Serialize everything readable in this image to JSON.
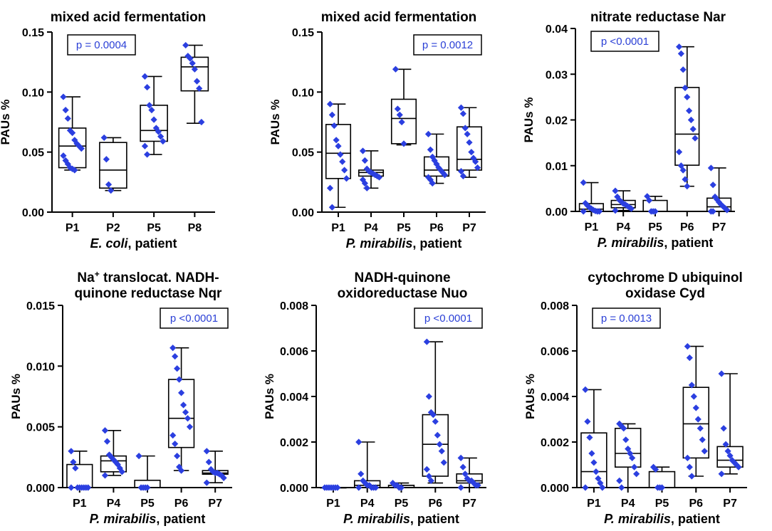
{
  "chart_data": [
    {
      "type": "box",
      "title_lines": [
        "mixed acid fermentation"
      ],
      "ylabel": "PAUs %",
      "xlabel_species": "E. coli",
      "xlabel_suffix": ", patient",
      "ylim": [
        0,
        0.15
      ],
      "yticks": [
        "0.00",
        "0.05",
        "0.10",
        "0.15"
      ],
      "pvalue": "p = 0.0004",
      "pvalue_pos": "top-left",
      "colors": {
        "points": "#2b3fe0",
        "pvalue": "#2a3fd6"
      },
      "categories": [
        "P1",
        "P2",
        "P5",
        "P8"
      ],
      "series": [
        {
          "name": "P1",
          "min": 0.035,
          "q1": 0.037,
          "median": 0.055,
          "q3": 0.07,
          "max": 0.096,
          "points": [
            0.096,
            0.085,
            0.078,
            0.068,
            0.066,
            0.06,
            0.057,
            0.055,
            0.053,
            0.047,
            0.043,
            0.04,
            0.037,
            0.036,
            0.035
          ]
        },
        {
          "name": "P2",
          "min": 0.018,
          "q1": 0.02,
          "median": 0.035,
          "q3": 0.058,
          "max": 0.062,
          "points": [
            0.062,
            0.044,
            0.023,
            0.018
          ]
        },
        {
          "name": "P5",
          "min": 0.048,
          "q1": 0.059,
          "median": 0.068,
          "q3": 0.089,
          "max": 0.113,
          "points": [
            0.113,
            0.104,
            0.089,
            0.085,
            0.077,
            0.07,
            0.067,
            0.063,
            0.059,
            0.055,
            0.048
          ]
        },
        {
          "name": "P8",
          "min": 0.074,
          "q1": 0.101,
          "median": 0.121,
          "q3": 0.129,
          "max": 0.139,
          "points": [
            0.139,
            0.13,
            0.128,
            0.124,
            0.119,
            0.109,
            0.103,
            0.075
          ]
        }
      ]
    },
    {
      "type": "box",
      "title_lines": [
        "mixed acid fermentation"
      ],
      "ylabel": "PAUs %",
      "xlabel_species": "P. mirabilis",
      "xlabel_suffix": ", patient",
      "ylim": [
        0,
        0.15
      ],
      "yticks": [
        "0.00",
        "0.05",
        "0.10",
        "0.15"
      ],
      "pvalue": "p = 0.0012",
      "pvalue_pos": "top-right",
      "colors": {
        "points": "#2b3fe0",
        "pvalue": "#2a3fd6"
      },
      "categories": [
        "P1",
        "P4",
        "P5",
        "P6",
        "P7"
      ],
      "series": [
        {
          "name": "P1",
          "min": 0.004,
          "q1": 0.028,
          "median": 0.049,
          "q3": 0.073,
          "max": 0.09,
          "points": [
            0.09,
            0.081,
            0.072,
            0.06,
            0.055,
            0.048,
            0.042,
            0.035,
            0.028,
            0.02,
            0.004
          ]
        },
        {
          "name": "P4",
          "min": 0.02,
          "q1": 0.03,
          "median": 0.033,
          "q3": 0.035,
          "max": 0.051,
          "points": [
            0.051,
            0.043,
            0.036,
            0.034,
            0.033,
            0.032,
            0.031,
            0.03,
            0.029,
            0.027,
            0.024,
            0.02
          ]
        },
        {
          "name": "P5",
          "min": 0.056,
          "q1": 0.057,
          "median": 0.078,
          "q3": 0.094,
          "max": 0.119,
          "points": [
            0.119,
            0.086,
            0.081,
            0.075,
            0.057
          ]
        },
        {
          "name": "P6",
          "min": 0.024,
          "q1": 0.03,
          "median": 0.035,
          "q3": 0.046,
          "max": 0.065,
          "points": [
            0.065,
            0.052,
            0.046,
            0.043,
            0.04,
            0.037,
            0.035,
            0.033,
            0.031,
            0.029,
            0.027,
            0.024
          ]
        },
        {
          "name": "P7",
          "min": 0.029,
          "q1": 0.035,
          "median": 0.044,
          "q3": 0.071,
          "max": 0.087,
          "points": [
            0.087,
            0.082,
            0.07,
            0.065,
            0.058,
            0.05,
            0.045,
            0.042,
            0.037,
            0.034,
            0.03
          ]
        }
      ]
    },
    {
      "type": "box",
      "title_lines": [
        "nitrate reductase Nar"
      ],
      "ylabel": "PAUs %",
      "xlabel_species": "P. mirabilis",
      "xlabel_suffix": ", patient",
      "ylim": [
        0,
        0.04
      ],
      "yticks": [
        "0.00",
        "0.01",
        "0.02",
        "0.03",
        "0.04"
      ],
      "pvalue": "p <0.0001",
      "pvalue_pos": "top-left",
      "colors": {
        "points": "#2b3fe0",
        "pvalue": "#2a3fd6"
      },
      "categories": [
        "P1",
        "P4",
        "P5",
        "P6",
        "P7"
      ],
      "series": [
        {
          "name": "P1",
          "min": 0.0,
          "q1": 0.0,
          "median": 0.0005,
          "q3": 0.0017,
          "max": 0.0063,
          "points": [
            0.0063,
            0.0018,
            0.0013,
            0.0009,
            0.0006,
            0.0003,
            0.0001,
            0.0,
            0.0,
            0.0
          ]
        },
        {
          "name": "P4",
          "min": 0.0002,
          "q1": 0.0008,
          "median": 0.0015,
          "q3": 0.0024,
          "max": 0.0045,
          "points": [
            0.0045,
            0.0032,
            0.0025,
            0.0021,
            0.0017,
            0.0015,
            0.0012,
            0.0009,
            0.0006,
            0.0002
          ]
        },
        {
          "name": "P5",
          "min": 0.0,
          "q1": 0.0,
          "median": 0.0,
          "q3": 0.0024,
          "max": 0.0033,
          "points": [
            0.0033,
            0.0024,
            0.0,
            0.0,
            0.0
          ]
        },
        {
          "name": "P6",
          "min": 0.0055,
          "q1": 0.0101,
          "median": 0.0169,
          "q3": 0.0271,
          "max": 0.036,
          "points": [
            0.036,
            0.0345,
            0.031,
            0.027,
            0.025,
            0.022,
            0.02,
            0.018,
            0.016,
            0.013,
            0.01,
            0.009,
            0.007,
            0.0055
          ]
        },
        {
          "name": "P7",
          "min": 0.0,
          "q1": 0.0,
          "median": 0.001,
          "q3": 0.0029,
          "max": 0.0095,
          "points": [
            0.0095,
            0.0058,
            0.0032,
            0.0026,
            0.002,
            0.0015,
            0.0011,
            0.0007,
            0.0003,
            0.0,
            0.0
          ]
        }
      ]
    },
    {
      "type": "box",
      "title_lines": [
        "Na+ translocat. NADH-",
        "quinone reductase Nqr"
      ],
      "ylabel": "PAUs %",
      "xlabel_species": "P. mirabilis",
      "xlabel_suffix": ", patient",
      "ylim": [
        0,
        0.015
      ],
      "yticks": [
        "0.000",
        "0.005",
        "0.010",
        "0.015"
      ],
      "pvalue": "p <0.0001",
      "pvalue_pos": "top-right",
      "colors": {
        "points": "#2b3fe0",
        "pvalue": "#2a3fd6"
      },
      "categories": [
        "P1",
        "P4",
        "P5",
        "P6",
        "P7"
      ],
      "series": [
        {
          "name": "P1",
          "min": 0.0,
          "q1": 0.0,
          "median": 0.0,
          "q3": 0.0019,
          "max": 0.003,
          "points": [
            0.003,
            0.0021,
            0.0016,
            0.0,
            0.0,
            0.0,
            0.0,
            0.0,
            0.0,
            0.0
          ]
        },
        {
          "name": "P4",
          "min": 0.001,
          "q1": 0.0013,
          "median": 0.0022,
          "q3": 0.0026,
          "max": 0.0047,
          "points": [
            0.0047,
            0.0038,
            0.0027,
            0.0025,
            0.0023,
            0.0021,
            0.0019,
            0.0016,
            0.0013,
            0.001
          ]
        },
        {
          "name": "P5",
          "min": 0.0,
          "q1": 0.0,
          "median": 0.0,
          "q3": 0.0006,
          "max": 0.0026,
          "points": [
            0.0026,
            0.0,
            0.0,
            0.0,
            0.0
          ]
        },
        {
          "name": "P6",
          "min": 0.0014,
          "q1": 0.0033,
          "median": 0.0057,
          "q3": 0.0089,
          "max": 0.0115,
          "points": [
            0.0115,
            0.0108,
            0.0098,
            0.0089,
            0.0078,
            0.0068,
            0.0062,
            0.0057,
            0.005,
            0.0043,
            0.0036,
            0.0026,
            0.0017,
            0.0014
          ]
        },
        {
          "name": "P7",
          "min": 0.0004,
          "q1": 0.0011,
          "median": 0.0012,
          "q3": 0.0014,
          "max": 0.003,
          "points": [
            0.003,
            0.0021,
            0.0015,
            0.0013,
            0.0012,
            0.0012,
            0.0011,
            0.001,
            0.0008,
            0.0004
          ]
        }
      ]
    },
    {
      "type": "box",
      "title_lines": [
        "NADH-quinone",
        "oxidoreductase Nuo"
      ],
      "ylabel": "PAUs %",
      "xlabel_species": "P. mirabilis",
      "xlabel_suffix": ", patient",
      "ylim": [
        0,
        0.008
      ],
      "yticks": [
        "0.000",
        "0.002",
        "0.004",
        "0.006",
        "0.008"
      ],
      "pvalue": "p <0.0001",
      "pvalue_pos": "top-right",
      "colors": {
        "points": "#2b3fe0",
        "pvalue": "#2a3fd6"
      },
      "categories": [
        "P1",
        "P4",
        "P5",
        "P6",
        "P7"
      ],
      "series": [
        {
          "name": "P1",
          "min": 0.0,
          "q1": 0.0,
          "median": 0.0,
          "q3": 0.0,
          "max": 0.0,
          "points": [
            0.0,
            0.0,
            0.0,
            0.0,
            0.0,
            0.0,
            0.0
          ]
        },
        {
          "name": "P4",
          "min": 0.0,
          "q1": 0.0,
          "median": 0.0001,
          "q3": 0.0003,
          "max": 0.002,
          "points": [
            0.002,
            0.0006,
            0.0003,
            0.0002,
            0.0001,
            0.0001,
            0.0,
            0.0,
            0.0,
            0.0
          ]
        },
        {
          "name": "P5",
          "min": 0.0,
          "q1": 0.0,
          "median": 0.0001,
          "q3": 0.0001,
          "max": 0.0002,
          "points": [
            0.0002,
            0.0001,
            0.0001,
            0.0,
            0.0
          ]
        },
        {
          "name": "P6",
          "min": 0.0002,
          "q1": 0.0005,
          "median": 0.0019,
          "q3": 0.0032,
          "max": 0.0064,
          "points": [
            0.0064,
            0.004,
            0.0033,
            0.0032,
            0.0029,
            0.0023,
            0.0019,
            0.0016,
            0.0011,
            0.0008,
            0.0005,
            0.0003
          ]
        },
        {
          "name": "P7",
          "min": 0.0,
          "q1": 0.0002,
          "median": 0.0003,
          "q3": 0.0006,
          "max": 0.0013,
          "points": [
            0.0013,
            0.0009,
            0.0006,
            0.0004,
            0.0003,
            0.0003,
            0.0002,
            0.0001,
            0.0001,
            0.0
          ]
        }
      ]
    },
    {
      "type": "box",
      "title_lines": [
        "cytochrome D ubiquinol",
        "oxidase Cyd"
      ],
      "ylabel": "PAUs %",
      "xlabel_species": "P. mirabilis",
      "xlabel_suffix": ", patient",
      "ylim": [
        0,
        0.008
      ],
      "yticks": [
        "0.000",
        "0.002",
        "0.004",
        "0.006",
        "0.008"
      ],
      "pvalue": "p = 0.0013",
      "pvalue_pos": "top-left",
      "colors": {
        "points": "#2b3fe0",
        "pvalue": "#2a3fd6"
      },
      "categories": [
        "P1",
        "P4",
        "P5",
        "P6",
        "P7"
      ],
      "series": [
        {
          "name": "P1",
          "min": 0.0,
          "q1": 0.0,
          "median": 0.0007,
          "q3": 0.0024,
          "max": 0.0043,
          "points": [
            0.0043,
            0.0029,
            0.0022,
            0.0015,
            0.0011,
            0.0007,
            0.0004,
            0.0002,
            0.0,
            0.0
          ]
        },
        {
          "name": "P4",
          "min": 0.0,
          "q1": 0.0009,
          "median": 0.0015,
          "q3": 0.0026,
          "max": 0.0028,
          "points": [
            0.0028,
            0.0027,
            0.0026,
            0.0021,
            0.0017,
            0.0015,
            0.0013,
            0.0009,
            0.0006,
            0.0003,
            0.0
          ]
        },
        {
          "name": "P5",
          "min": 0.0,
          "q1": 0.0,
          "median": 0.0,
          "q3": 0.0007,
          "max": 0.0009,
          "points": [
            0.0009,
            0.0008,
            0.0,
            0.0,
            0.0
          ]
        },
        {
          "name": "P6",
          "min": 0.0005,
          "q1": 0.0013,
          "median": 0.0028,
          "q3": 0.0044,
          "max": 0.0062,
          "points": [
            0.0062,
            0.0057,
            0.0045,
            0.004,
            0.0035,
            0.003,
            0.0026,
            0.0021,
            0.0016,
            0.0013,
            0.0009,
            0.0005
          ]
        },
        {
          "name": "P7",
          "min": 0.0006,
          "q1": 0.0009,
          "median": 0.0012,
          "q3": 0.0018,
          "max": 0.005,
          "points": [
            0.005,
            0.0026,
            0.0019,
            0.0016,
            0.0014,
            0.0012,
            0.0011,
            0.001,
            0.0009,
            0.0006
          ]
        }
      ]
    }
  ]
}
